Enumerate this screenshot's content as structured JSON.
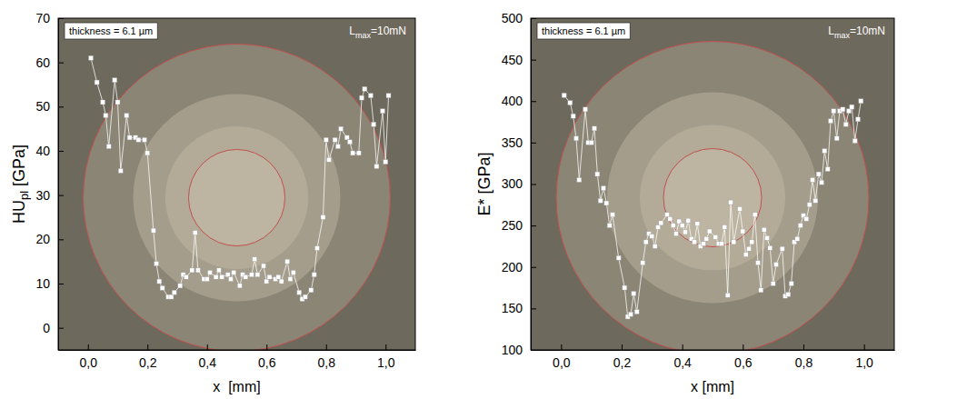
{
  "chart_data": [
    {
      "type": "line",
      "marker": "square",
      "grid": false,
      "tick_labels": true,
      "ylabel": {
        "main": "HU",
        "sub": "pl",
        "after": " [GPa]"
      },
      "xlabel": "x  [mm]",
      "annotations": [
        "thickness = 6.1 µm",
        {
          "main": "L",
          "sub": "max",
          "after": "=10mN"
        }
      ],
      "xlim": [
        -0.1,
        1.1
      ],
      "xticks": [
        {
          "value": 0,
          "label": "0,0"
        },
        {
          "value": 0.2,
          "label": "0,2"
        },
        {
          "value": 0.4,
          "label": "0,4"
        },
        {
          "value": 0.6,
          "label": "0,6"
        },
        {
          "value": 0.8,
          "label": "0,8"
        },
        {
          "value": 1,
          "label": "1,0"
        }
      ],
      "ylim": [
        -5,
        70
      ],
      "yticks": [
        0,
        10,
        20,
        30,
        40,
        50,
        60,
        70
      ],
      "x": [
        0.01,
        0.03,
        0.05,
        0.06,
        0.07,
        0.09,
        0.1,
        0.11,
        0.13,
        0.14,
        0.16,
        0.17,
        0.19,
        0.2,
        0.22,
        0.23,
        0.24,
        0.25,
        0.27,
        0.28,
        0.29,
        0.31,
        0.32,
        0.33,
        0.35,
        0.36,
        0.37,
        0.39,
        0.4,
        0.41,
        0.43,
        0.44,
        0.45,
        0.47,
        0.48,
        0.49,
        0.51,
        0.52,
        0.53,
        0.55,
        0.56,
        0.57,
        0.59,
        0.6,
        0.61,
        0.63,
        0.64,
        0.65,
        0.67,
        0.68,
        0.69,
        0.71,
        0.72,
        0.73,
        0.75,
        0.76,
        0.77,
        0.79,
        0.8,
        0.81,
        0.83,
        0.84,
        0.85,
        0.87,
        0.88,
        0.89,
        0.91,
        0.92,
        0.93,
        0.95,
        0.96,
        0.97,
        0.99,
        1.0,
        1.01
      ],
      "series": [
        {
          "color": "#ffffff",
          "values": [
            61,
            55.5,
            51,
            48,
            41,
            56,
            51,
            35.5,
            48,
            43,
            43,
            42.5,
            42.5,
            39.5,
            22,
            14.5,
            10.5,
            9,
            7,
            7,
            8,
            9.5,
            12,
            11.5,
            13,
            21.5,
            13,
            11,
            11,
            12.5,
            11.5,
            13,
            11.5,
            12,
            11,
            12.5,
            9.5,
            12,
            11.5,
            12,
            15.5,
            12,
            14,
            10.5,
            11.5,
            11,
            11.5,
            10.5,
            15,
            11,
            12.5,
            8,
            6.5,
            7,
            8.5,
            12,
            18,
            25,
            42.5,
            38,
            42.5,
            41,
            45,
            43,
            42,
            39.5,
            39.5,
            52,
            54,
            52.5,
            46,
            36.5,
            49,
            37.5,
            52.5
          ]
        }
      ]
    },
    {
      "type": "line",
      "marker": "square",
      "grid": false,
      "tick_labels": true,
      "ylabel": "E* [GPa]",
      "xlabel": "x [mm]",
      "annotations": [
        "thickness = 6.1 µm",
        {
          "main": "L",
          "sub": "max",
          "after": "=10mN"
        }
      ],
      "xlim": [
        -0.1,
        1.1
      ],
      "xticks": [
        {
          "value": 0,
          "label": "0,0"
        },
        {
          "value": 0.2,
          "label": "0,2"
        },
        {
          "value": 0.4,
          "label": "0,4"
        },
        {
          "value": 0.6,
          "label": "0,6"
        },
        {
          "value": 0.8,
          "label": "0,8"
        },
        {
          "value": 1,
          "label": "1,0"
        }
      ],
      "ylim": [
        100,
        500
      ],
      "yticks": [
        100,
        150,
        200,
        250,
        300,
        350,
        400,
        450,
        500
      ],
      "x": [
        0.01,
        0.03,
        0.04,
        0.05,
        0.06,
        0.08,
        0.09,
        0.1,
        0.11,
        0.12,
        0.13,
        0.14,
        0.15,
        0.16,
        0.17,
        0.19,
        0.21,
        0.22,
        0.23,
        0.24,
        0.25,
        0.27,
        0.28,
        0.29,
        0.3,
        0.31,
        0.32,
        0.33,
        0.35,
        0.36,
        0.37,
        0.38,
        0.39,
        0.4,
        0.41,
        0.42,
        0.43,
        0.44,
        0.45,
        0.46,
        0.47,
        0.48,
        0.49,
        0.51,
        0.52,
        0.53,
        0.54,
        0.55,
        0.56,
        0.57,
        0.59,
        0.6,
        0.61,
        0.62,
        0.63,
        0.64,
        0.65,
        0.66,
        0.67,
        0.68,
        0.69,
        0.7,
        0.71,
        0.73,
        0.74,
        0.75,
        0.76,
        0.77,
        0.78,
        0.79,
        0.8,
        0.81,
        0.82,
        0.83,
        0.84,
        0.85,
        0.86,
        0.87,
        0.88,
        0.89,
        0.9,
        0.91,
        0.92,
        0.93,
        0.94,
        0.95,
        0.96,
        0.97,
        0.98,
        0.99
      ],
      "series": [
        {
          "color": "#ffffff",
          "values": [
            407,
            398,
            382,
            355,
            305,
            390,
            350,
            350,
            367,
            312,
            280,
            295,
            277,
            250,
            263,
            211,
            175,
            140,
            143,
            168,
            146,
            205,
            230,
            240,
            237,
            225,
            248,
            253,
            263,
            258,
            250,
            240,
            255,
            250,
            242,
            256,
            234,
            230,
            252,
            225,
            228,
            234,
            243,
            236,
            228,
            228,
            248,
            166,
            278,
            230,
            270,
            243,
            215,
            222,
            230,
            263,
            205,
            172,
            245,
            235,
            223,
            180,
            203,
            222,
            165,
            167,
            180,
            230,
            234,
            250,
            262,
            258,
            275,
            305,
            280,
            312,
            302,
            340,
            318,
            376,
            388,
            355,
            388,
            390,
            372,
            388,
            393,
            352,
            378,
            400
          ]
        }
      ]
    }
  ]
}
